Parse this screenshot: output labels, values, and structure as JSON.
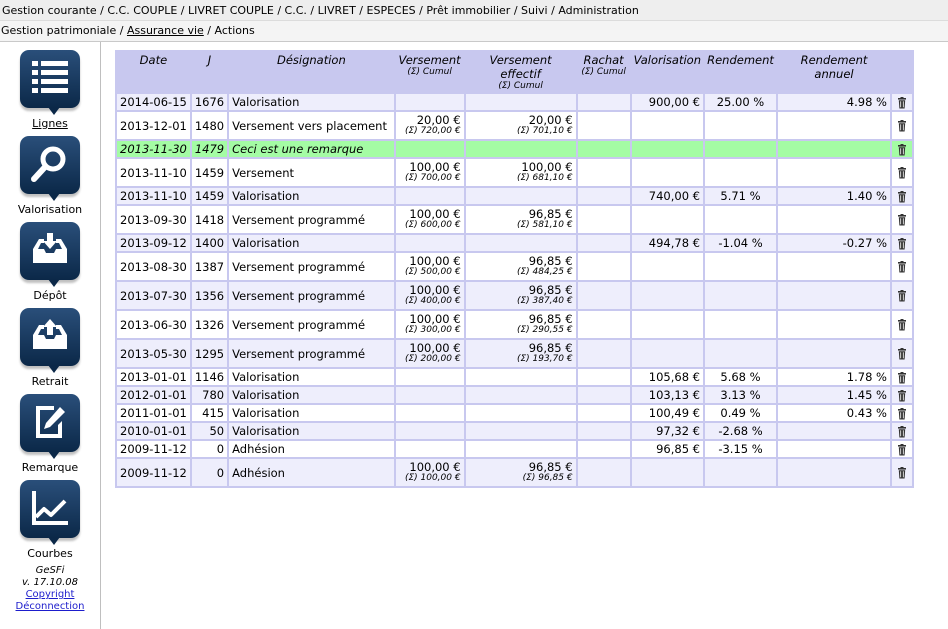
{
  "nav": {
    "breadcrumb": [
      "Gestion courante",
      "C.C. COUPLE",
      "LIVRET COUPLE",
      "C.C.",
      "LIVRET",
      "ESPECES",
      "Prêt immobilier",
      "Suivi",
      "Administration"
    ],
    "sub": [
      {
        "label": "Gestion patrimoniale",
        "active": false
      },
      {
        "label": "Assurance vie",
        "active": true
      },
      {
        "label": "Actions",
        "active": false
      }
    ]
  },
  "sidebar": {
    "items": [
      {
        "label": "Lignes",
        "icon": "list-icon"
      },
      {
        "label": "Valorisation",
        "icon": "magnifier-icon"
      },
      {
        "label": "Dépôt",
        "icon": "inbox-download-icon"
      },
      {
        "label": "Retrait",
        "icon": "inbox-upload-icon"
      },
      {
        "label": "Remarque",
        "icon": "note-pen-icon"
      },
      {
        "label": "Courbes",
        "icon": "chart-line-icon"
      }
    ],
    "app_name": "GeSFi",
    "version": "v. 17.10.08",
    "copyright_label": "Copyright",
    "logout_label": "Déconnection"
  },
  "table": {
    "headers": {
      "date": "Date",
      "j": "J",
      "designation": "Désignation",
      "versement": "Versement",
      "versement_sub": "(Σ) Cumul",
      "versement_effectif": "Versement effectif",
      "versement_effectif_sub": "(Σ) Cumul",
      "rachat": "Rachat",
      "rachat_sub": "(Σ) Cumul",
      "valorisation": "Valorisation",
      "rendement": "Rendement",
      "rendement_annuel": "Rendement annuel"
    },
    "rows": [
      {
        "type": "odd",
        "date": "2014-06-15",
        "j": "1676",
        "designation": "Valorisation",
        "versement": "",
        "versement_cum": "",
        "effectif": "",
        "effectif_cum": "",
        "rachat": "",
        "valorisation": "900,00 €",
        "rendement": "25.00 %",
        "rendement_annuel": "4.98 %"
      },
      {
        "type": "even",
        "date": "2013-12-01",
        "j": "1480",
        "designation": "Versement vers placement",
        "versement": "20,00 €",
        "versement_cum": "(Σ) 720,00 €",
        "effectif": "20,00 €",
        "effectif_cum": "(Σ) 701,10 €",
        "rachat": "",
        "valorisation": "",
        "rendement": "",
        "rendement_annuel": ""
      },
      {
        "type": "remark",
        "date": "2013-11-30",
        "j": "1479",
        "designation": "Ceci est une remarque",
        "versement": "",
        "versement_cum": "",
        "effectif": "",
        "effectif_cum": "",
        "rachat": "",
        "valorisation": "",
        "rendement": "",
        "rendement_annuel": ""
      },
      {
        "type": "even",
        "date": "2013-11-10",
        "j": "1459",
        "designation": "Versement",
        "versement": "100,00 €",
        "versement_cum": "(Σ) 700,00 €",
        "effectif": "100,00 €",
        "effectif_cum": "(Σ) 681,10 €",
        "rachat": "",
        "valorisation": "",
        "rendement": "",
        "rendement_annuel": ""
      },
      {
        "type": "odd",
        "date": "2013-11-10",
        "j": "1459",
        "designation": "Valorisation",
        "versement": "",
        "versement_cum": "",
        "effectif": "",
        "effectif_cum": "",
        "rachat": "",
        "valorisation": "740,00 €",
        "rendement": "5.71 %",
        "rendement_annuel": "1.40 %"
      },
      {
        "type": "even",
        "date": "2013-09-30",
        "j": "1418",
        "designation": "Versement programmé",
        "versement": "100,00 €",
        "versement_cum": "(Σ) 600,00 €",
        "effectif": "96,85 €",
        "effectif_cum": "(Σ) 581,10 €",
        "rachat": "",
        "valorisation": "",
        "rendement": "",
        "rendement_annuel": ""
      },
      {
        "type": "odd",
        "date": "2013-09-12",
        "j": "1400",
        "designation": "Valorisation",
        "versement": "",
        "versement_cum": "",
        "effectif": "",
        "effectif_cum": "",
        "rachat": "",
        "valorisation": "494,78 €",
        "rendement": "-1.04 %",
        "rendement_annuel": "-0.27 %"
      },
      {
        "type": "even",
        "date": "2013-08-30",
        "j": "1387",
        "designation": "Versement programmé",
        "versement": "100,00 €",
        "versement_cum": "(Σ) 500,00 €",
        "effectif": "96,85 €",
        "effectif_cum": "(Σ) 484,25 €",
        "rachat": "",
        "valorisation": "",
        "rendement": "",
        "rendement_annuel": ""
      },
      {
        "type": "odd",
        "date": "2013-07-30",
        "j": "1356",
        "designation": "Versement programmé",
        "versement": "100,00 €",
        "versement_cum": "(Σ) 400,00 €",
        "effectif": "96,85 €",
        "effectif_cum": "(Σ) 387,40 €",
        "rachat": "",
        "valorisation": "",
        "rendement": "",
        "rendement_annuel": ""
      },
      {
        "type": "even",
        "date": "2013-06-30",
        "j": "1326",
        "designation": "Versement programmé",
        "versement": "100,00 €",
        "versement_cum": "(Σ) 300,00 €",
        "effectif": "96,85 €",
        "effectif_cum": "(Σ) 290,55 €",
        "rachat": "",
        "valorisation": "",
        "rendement": "",
        "rendement_annuel": ""
      },
      {
        "type": "odd",
        "date": "2013-05-30",
        "j": "1295",
        "designation": "Versement programmé",
        "versement": "100,00 €",
        "versement_cum": "(Σ) 200,00 €",
        "effectif": "96,85 €",
        "effectif_cum": "(Σ) 193,70 €",
        "rachat": "",
        "valorisation": "",
        "rendement": "",
        "rendement_annuel": ""
      },
      {
        "type": "even",
        "date": "2013-01-01",
        "j": "1146",
        "designation": "Valorisation",
        "versement": "",
        "versement_cum": "",
        "effectif": "",
        "effectif_cum": "",
        "rachat": "",
        "valorisation": "105,68 €",
        "rendement": "5.68 %",
        "rendement_annuel": "1.78 %"
      },
      {
        "type": "odd",
        "date": "2012-01-01",
        "j": "780",
        "designation": "Valorisation",
        "versement": "",
        "versement_cum": "",
        "effectif": "",
        "effectif_cum": "",
        "rachat": "",
        "valorisation": "103,13 €",
        "rendement": "3.13 %",
        "rendement_annuel": "1.45 %"
      },
      {
        "type": "even",
        "date": "2011-01-01",
        "j": "415",
        "designation": "Valorisation",
        "versement": "",
        "versement_cum": "",
        "effectif": "",
        "effectif_cum": "",
        "rachat": "",
        "valorisation": "100,49 €",
        "rendement": "0.49 %",
        "rendement_annuel": "0.43 %"
      },
      {
        "type": "odd",
        "date": "2010-01-01",
        "j": "50",
        "designation": "Valorisation",
        "versement": "",
        "versement_cum": "",
        "effectif": "",
        "effectif_cum": "",
        "rachat": "",
        "valorisation": "97,32 €",
        "rendement": "-2.68 %",
        "rendement_annuel": ""
      },
      {
        "type": "even",
        "date": "2009-11-12",
        "j": "0",
        "designation": "Adhésion",
        "versement": "",
        "versement_cum": "",
        "effectif": "",
        "effectif_cum": "",
        "rachat": "",
        "valorisation": "96,85 €",
        "rendement": "-3.15 %",
        "rendement_annuel": ""
      },
      {
        "type": "odd",
        "date": "2009-11-12",
        "j": "0",
        "designation": "Adhésion",
        "versement": "100,00 €",
        "versement_cum": "(Σ) 100,00 €",
        "effectif": "96,85 €",
        "effectif_cum": "(Σ) 96,85 €",
        "rachat": "",
        "valorisation": "",
        "rendement": "",
        "rendement_annuel": ""
      }
    ]
  },
  "colors": {
    "header_bg": "#c8c8ef",
    "row_odd": "#eeeefc",
    "remark_row": "#a4fca4",
    "icon_blue": "#0b2848",
    "link": "#1d1dcc"
  }
}
